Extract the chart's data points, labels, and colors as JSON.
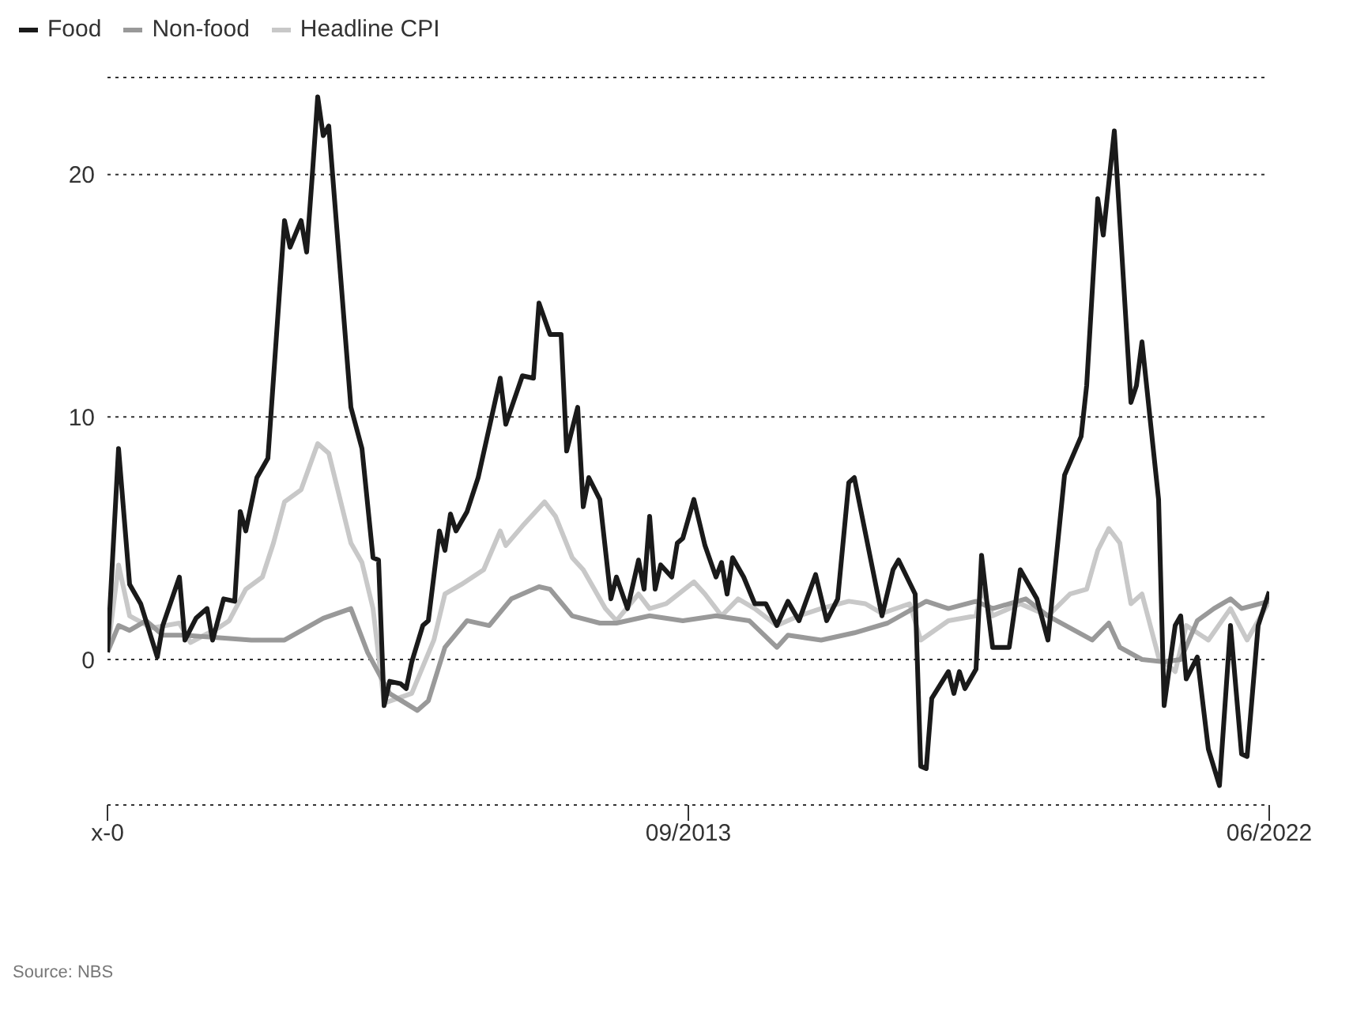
{
  "chart_data": {
    "type": "line",
    "legend": "top left",
    "grid": "y",
    "line_style": "solid",
    "marker": "none",
    "xlim": [
      "2004-12",
      "2022-06"
    ],
    "xticks": [
      {
        "value": "2004-12",
        "label": "x-0"
      },
      {
        "value": "2013-09",
        "label": "09/2013"
      },
      {
        "value": "2022-06",
        "label": "06/2022"
      }
    ],
    "ylim": [
      -6,
      24
    ],
    "yticks": [
      0,
      10,
      20
    ],
    "annotations": [
      "Source: NBS"
    ],
    "series": [
      {
        "name": "Food",
        "color": "#1a1a1a",
        "x": [
          "2004-12",
          "2005-02",
          "2005-04",
          "2005-05",
          "2005-06",
          "2005-09",
          "2005-10",
          "2006-01",
          "2006-02",
          "2006-04",
          "2006-06",
          "2006-07",
          "2006-09",
          "2006-11",
          "2006-12",
          "2007-01",
          "2007-03",
          "2007-05",
          "2007-08",
          "2007-09",
          "2007-11",
          "2007-12",
          "2008-01",
          "2008-02",
          "2008-03",
          "2008-04",
          "2008-08",
          "2008-10",
          "2008-12",
          "2009-01",
          "2009-02",
          "2009-03",
          "2009-05",
          "2009-06",
          "2009-07",
          "2009-09",
          "2009-10",
          "2009-12",
          "2010-01",
          "2010-02",
          "2010-03",
          "2010-05",
          "2010-07",
          "2010-11",
          "2010-12",
          "2011-03",
          "2011-05",
          "2011-06",
          "2011-08",
          "2011-10",
          "2011-11",
          "2012-01",
          "2012-02",
          "2012-03",
          "2012-05",
          "2012-07",
          "2012-08",
          "2012-10",
          "2012-12",
          "2013-01",
          "2013-02",
          "2013-03",
          "2013-04",
          "2013-06",
          "2013-07",
          "2013-08",
          "2013-10",
          "2013-12",
          "2014-02",
          "2014-03",
          "2014-04",
          "2014-05",
          "2014-07",
          "2014-09",
          "2014-11",
          "2015-01",
          "2015-03",
          "2015-05",
          "2015-08",
          "2015-10",
          "2015-12",
          "2016-02",
          "2016-03",
          "2016-08",
          "2016-10",
          "2016-11",
          "2017-02",
          "2017-03",
          "2017-04",
          "2017-05",
          "2017-08",
          "2017-09",
          "2017-10",
          "2017-11",
          "2018-01",
          "2018-02",
          "2018-03",
          "2018-04",
          "2018-07",
          "2018-09",
          "2018-11",
          "2018-12",
          "2019-02",
          "2019-05",
          "2019-08",
          "2019-09",
          "2019-11",
          "2019-12",
          "2020-02",
          "2020-05",
          "2020-06",
          "2020-07",
          "2020-10",
          "2020-11",
          "2021-01",
          "2021-02",
          "2021-03",
          "2021-05",
          "2021-07",
          "2021-09",
          "2021-11",
          "2022-01",
          "2022-02",
          "2022-04",
          "2022-06"
        ],
        "values": [
          0.3,
          8.7,
          3.1,
          2.7,
          2.3,
          0.1,
          1.4,
          3.4,
          0.8,
          1.7,
          2.1,
          0.8,
          2.5,
          2.4,
          6.1,
          5.3,
          7.5,
          8.3,
          18.1,
          17.0,
          18.1,
          16.8,
          19.9,
          23.2,
          21.6,
          22.0,
          10.4,
          8.7,
          4.2,
          4.1,
          -1.9,
          -0.9,
          -1.0,
          -1.2,
          -0.1,
          1.4,
          1.6,
          5.3,
          4.5,
          6.0,
          5.3,
          6.1,
          7.5,
          11.6,
          9.7,
          11.7,
          11.6,
          14.7,
          13.4,
          13.4,
          8.6,
          10.4,
          6.3,
          7.5,
          6.6,
          2.5,
          3.4,
          2.1,
          4.1,
          2.9,
          5.9,
          2.9,
          3.9,
          3.4,
          4.8,
          5.0,
          6.6,
          4.7,
          3.4,
          4.0,
          2.7,
          4.2,
          3.4,
          2.3,
          2.3,
          1.4,
          2.4,
          1.6,
          3.5,
          1.6,
          2.5,
          7.3,
          7.5,
          1.8,
          3.7,
          4.1,
          2.7,
          -4.4,
          -4.5,
          -1.6,
          -0.5,
          -1.4,
          -0.5,
          -1.2,
          -0.4,
          4.3,
          2.3,
          0.5,
          0.5,
          3.7,
          2.9,
          2.5,
          0.8,
          7.6,
          9.2,
          11.3,
          19.0,
          17.5,
          21.8,
          10.6,
          11.3,
          13.1,
          6.6,
          -1.9,
          1.4,
          1.8,
          -0.8,
          0.1,
          -3.7,
          -5.2,
          1.4,
          -3.9,
          -4.0,
          1.4,
          2.8
        ]
      },
      {
        "name": "Non-food",
        "color": "#999999",
        "x": [
          "2004-12",
          "2005-02",
          "2005-04",
          "2005-07",
          "2005-10",
          "2006-02",
          "2007-02",
          "2007-08",
          "2008-03",
          "2008-08",
          "2008-11",
          "2009-03",
          "2009-08",
          "2009-10",
          "2010-01",
          "2010-05",
          "2010-09",
          "2011-01",
          "2011-06",
          "2011-08",
          "2011-12",
          "2012-05",
          "2012-08",
          "2013-02",
          "2013-08",
          "2014-02",
          "2014-08",
          "2015-01",
          "2015-03",
          "2015-09",
          "2016-03",
          "2016-09",
          "2017-04",
          "2017-08",
          "2018-01",
          "2018-04",
          "2018-10",
          "2019-02",
          "2019-10",
          "2020-01",
          "2020-03",
          "2020-07",
          "2020-11",
          "2021-02",
          "2021-05",
          "2021-08",
          "2021-11",
          "2022-01",
          "2022-06"
        ],
        "values": [
          0.3,
          1.4,
          1.2,
          1.6,
          1.0,
          1.0,
          0.8,
          0.8,
          1.7,
          2.1,
          0.3,
          -1.4,
          -2.1,
          -1.7,
          0.5,
          1.6,
          1.4,
          2.5,
          3.0,
          2.9,
          1.8,
          1.5,
          1.5,
          1.8,
          1.6,
          1.8,
          1.6,
          0.5,
          1.0,
          0.8,
          1.1,
          1.5,
          2.4,
          2.1,
          2.4,
          2.1,
          2.5,
          1.8,
          0.8,
          1.5,
          0.5,
          0.0,
          -0.1,
          0.0,
          1.6,
          2.1,
          2.5,
          2.1,
          2.4
        ]
      },
      {
        "name": "Headline CPI",
        "color": "#c8c8c8",
        "x": [
          "2004-12",
          "2005-02",
          "2005-04",
          "2005-08",
          "2006-01",
          "2006-03",
          "2006-08",
          "2006-10",
          "2007-01",
          "2007-04",
          "2007-06",
          "2007-08",
          "2007-11",
          "2008-02",
          "2008-04",
          "2008-08",
          "2008-10",
          "2008-12",
          "2009-02",
          "2009-07",
          "2009-11",
          "2010-01",
          "2010-04",
          "2010-08",
          "2010-11",
          "2010-12",
          "2011-03",
          "2011-07",
          "2011-09",
          "2011-12",
          "2012-02",
          "2012-06",
          "2012-08",
          "2012-12",
          "2013-02",
          "2013-05",
          "2013-10",
          "2013-12",
          "2014-03",
          "2014-06",
          "2014-09",
          "2015-01",
          "2015-05",
          "2015-09",
          "2016-02",
          "2016-05",
          "2016-08",
          "2017-01",
          "2017-03",
          "2017-08",
          "2018-01",
          "2018-02",
          "2018-04",
          "2018-09",
          "2019-02",
          "2019-06",
          "2019-09",
          "2019-11",
          "2020-01",
          "2020-03",
          "2020-05",
          "2020-07",
          "2020-10",
          "2021-01",
          "2021-03",
          "2021-07",
          "2021-11",
          "2022-02",
          "2022-06"
        ],
        "values": [
          0.3,
          3.9,
          1.8,
          1.3,
          1.5,
          0.7,
          1.3,
          1.6,
          2.9,
          3.4,
          4.8,
          6.5,
          7.0,
          8.9,
          8.5,
          4.8,
          4.0,
          2.1,
          -1.8,
          -1.4,
          0.8,
          2.7,
          3.1,
          3.7,
          5.3,
          4.7,
          5.5,
          6.5,
          5.9,
          4.2,
          3.7,
          2.1,
          1.6,
          2.7,
          2.1,
          2.3,
          3.2,
          2.7,
          1.8,
          2.5,
          2.1,
          1.4,
          1.8,
          2.1,
          2.4,
          2.3,
          1.9,
          2.3,
          0.8,
          1.6,
          1.8,
          2.9,
          1.8,
          2.3,
          1.8,
          2.7,
          2.9,
          4.5,
          5.4,
          4.8,
          2.3,
          2.7,
          0.1,
          -0.5,
          1.4,
          0.8,
          2.1,
          0.8,
          2.4
        ]
      }
    ]
  }
}
